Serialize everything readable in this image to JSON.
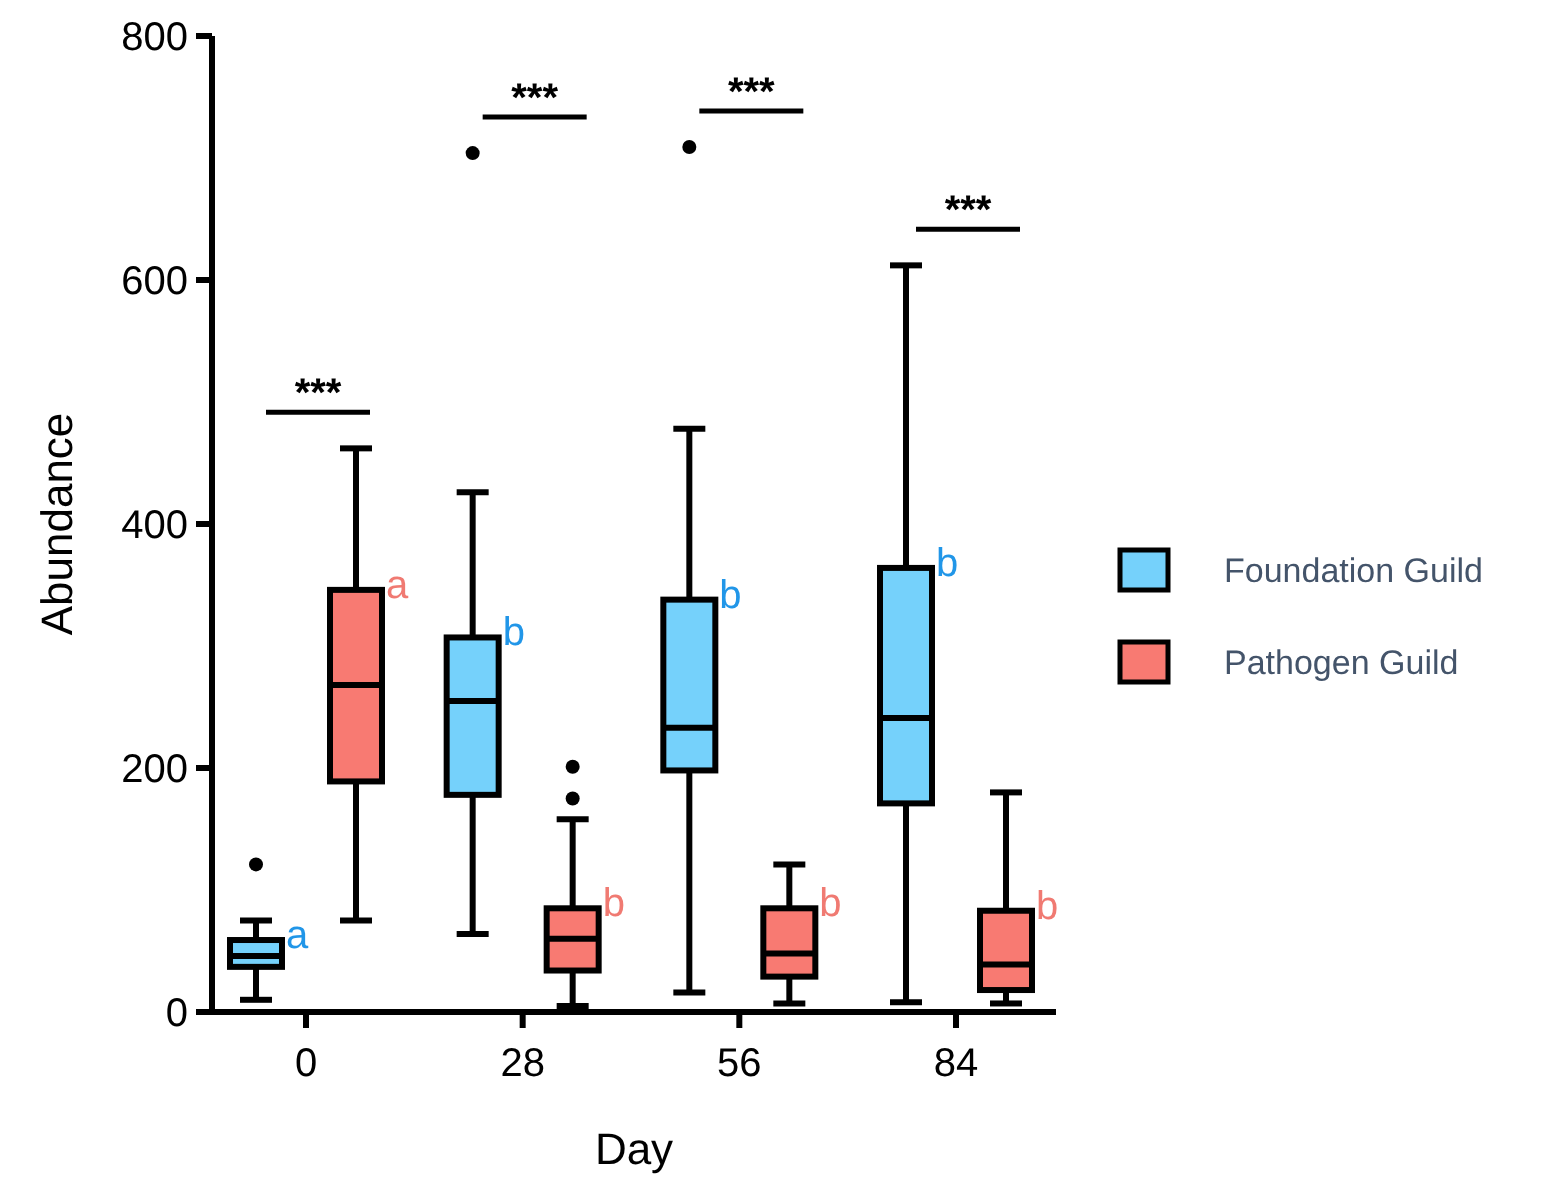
{
  "chart_data": {
    "type": "box",
    "xlabel": "Day",
    "ylabel": "Abundance",
    "categories": [
      "0",
      "28",
      "56",
      "84"
    ],
    "ylim": [
      0,
      800
    ],
    "yticks": [
      0,
      200,
      400,
      600,
      800
    ],
    "legend": "right",
    "series": [
      {
        "name": "Foundation Guild",
        "color": "#75d1fb",
        "value_labels": [
          "a",
          "b",
          "b",
          "b"
        ],
        "boxes": [
          {
            "low": 10,
            "q1": 37,
            "median": 46,
            "q3": 59,
            "high": 75,
            "outliers": [
              121
            ]
          },
          {
            "low": 64,
            "q1": 178,
            "median": 255,
            "q3": 307,
            "high": 426,
            "outliers": [
              704
            ]
          },
          {
            "low": 16,
            "q1": 198,
            "median": 233,
            "q3": 338,
            "high": 478,
            "outliers": [
              709
            ]
          },
          {
            "low": 8,
            "q1": 171,
            "median": 241,
            "q3": 364,
            "high": 612
          }
        ]
      },
      {
        "name": "Pathogen Guild",
        "color": "#f87a72",
        "value_labels": [
          "a",
          "b",
          "b",
          "b"
        ],
        "boxes": [
          {
            "low": 75,
            "q1": 189,
            "median": 268,
            "q3": 346,
            "high": 462
          },
          {
            "low": 5,
            "q1": 34,
            "median": 60,
            "q3": 85,
            "high": 158,
            "outliers": [
              175,
              201
            ]
          },
          {
            "low": 7,
            "q1": 29,
            "median": 48,
            "q3": 85,
            "high": 121
          },
          {
            "low": 7,
            "q1": 18,
            "median": 39,
            "q3": 83,
            "high": 180
          }
        ]
      }
    ],
    "annotations": [
      "***",
      "***",
      "***",
      "***"
    ]
  }
}
